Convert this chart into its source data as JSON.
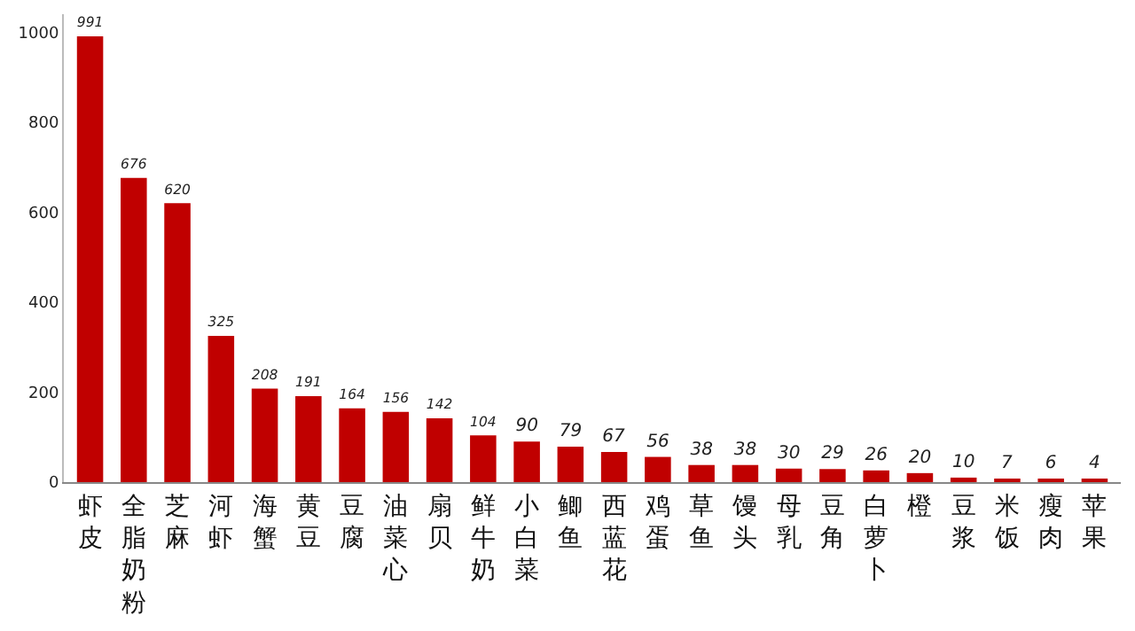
{
  "chart_data": {
    "type": "bar",
    "categories": [
      "虾皮",
      "全脂奶粉",
      "芝麻",
      "河虾",
      "海蟹",
      "黄豆",
      "豆腐",
      "油菜心",
      "扇贝",
      "鲜牛奶",
      "小白菜",
      "鲫鱼",
      "西蓝花",
      "鸡蛋",
      "草鱼",
      "馒头",
      "母乳",
      "豆角",
      "白萝卜",
      "橙",
      "豆浆",
      "米饭",
      "瘦肉",
      "苹果"
    ],
    "values": [
      991,
      676,
      620,
      325,
      208,
      191,
      164,
      156,
      142,
      104,
      90,
      79,
      67,
      56,
      38,
      38,
      30,
      29,
      26,
      20,
      10,
      7,
      6,
      4
    ],
    "color": "#c00000",
    "ylim": [
      0,
      1040
    ],
    "yticks": [
      0,
      200,
      400,
      600,
      800,
      1000
    ],
    "grid": false,
    "data_labels": true
  }
}
